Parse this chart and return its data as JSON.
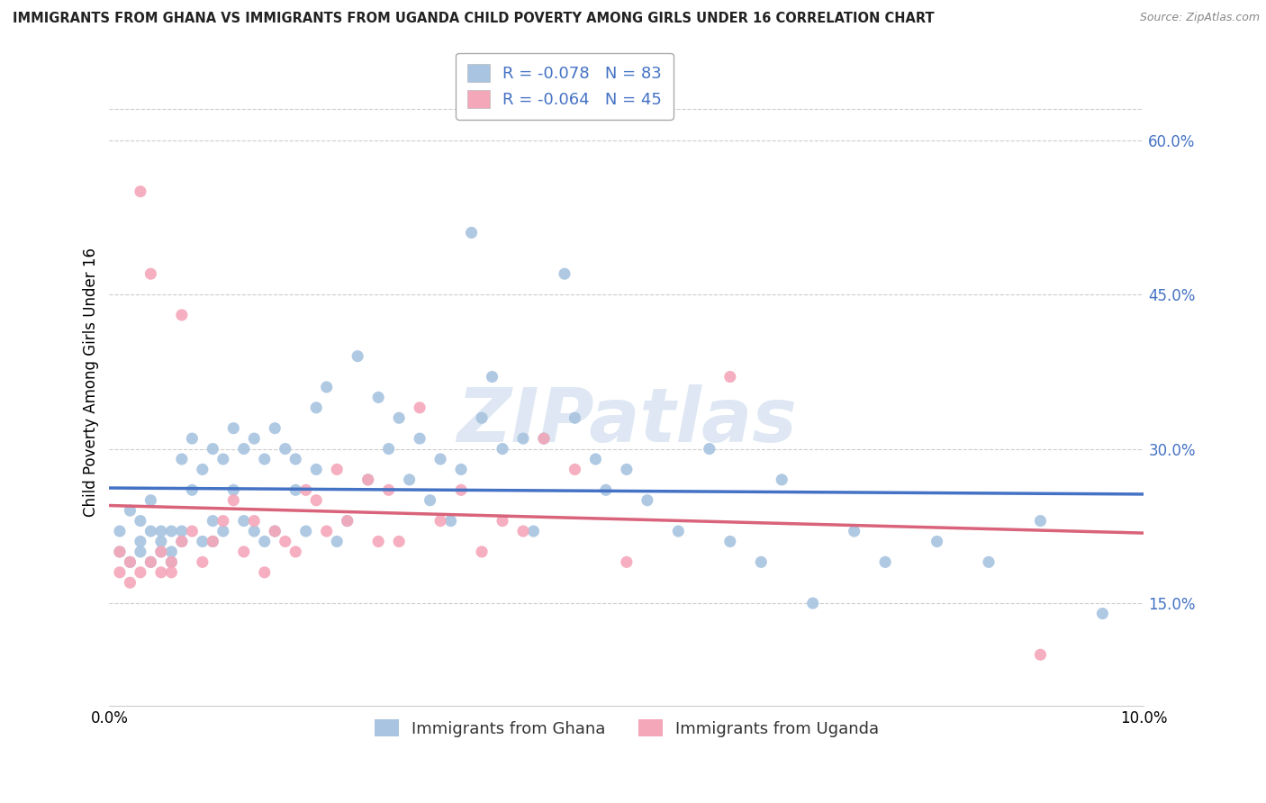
{
  "title": "IMMIGRANTS FROM GHANA VS IMMIGRANTS FROM UGANDA CHILD POVERTY AMONG GIRLS UNDER 16 CORRELATION CHART",
  "source": "Source: ZipAtlas.com",
  "ylabel": "Child Poverty Among Girls Under 16",
  "xlabel_legend1": "Immigrants from Ghana",
  "xlabel_legend2": "Immigrants from Uganda",
  "ghana_R": -0.078,
  "ghana_N": 83,
  "uganda_R": -0.064,
  "uganda_N": 45,
  "ghana_color": "#a8c4e0",
  "uganda_color": "#f4a7b9",
  "ghana_line_color": "#4472c4",
  "uganda_line_color": "#d9637a",
  "xlim": [
    0.0,
    0.1
  ],
  "ylim": [
    0.05,
    0.68
  ],
  "yticks": [
    0.15,
    0.3,
    0.45,
    0.6
  ],
  "ytick_labels": [
    "15.0%",
    "30.0%",
    "45.0%",
    "60.0%"
  ],
  "grid_color": "#cccccc",
  "background_color": "#ffffff",
  "watermark": "ZIPatlas",
  "watermark_color": "#c8d8ec",
  "legend_text_color": "#4472c4",
  "ghana_x": [
    0.001,
    0.001,
    0.002,
    0.002,
    0.003,
    0.003,
    0.003,
    0.004,
    0.004,
    0.004,
    0.005,
    0.005,
    0.005,
    0.006,
    0.006,
    0.006,
    0.007,
    0.007,
    0.007,
    0.008,
    0.008,
    0.009,
    0.009,
    0.01,
    0.01,
    0.01,
    0.011,
    0.011,
    0.012,
    0.012,
    0.013,
    0.013,
    0.014,
    0.014,
    0.015,
    0.015,
    0.016,
    0.016,
    0.017,
    0.018,
    0.018,
    0.019,
    0.02,
    0.02,
    0.021,
    0.022,
    0.023,
    0.024,
    0.025,
    0.026,
    0.027,
    0.028,
    0.029,
    0.03,
    0.031,
    0.032,
    0.033,
    0.034,
    0.035,
    0.036,
    0.037,
    0.038,
    0.04,
    0.041,
    0.042,
    0.044,
    0.045,
    0.047,
    0.048,
    0.05,
    0.052,
    0.055,
    0.058,
    0.06,
    0.063,
    0.065,
    0.068,
    0.072,
    0.075,
    0.08,
    0.085,
    0.09,
    0.096
  ],
  "ghana_y": [
    0.22,
    0.2,
    0.19,
    0.24,
    0.21,
    0.2,
    0.23,
    0.22,
    0.19,
    0.25,
    0.21,
    0.22,
    0.2,
    0.22,
    0.2,
    0.19,
    0.29,
    0.22,
    0.21,
    0.31,
    0.26,
    0.28,
    0.21,
    0.3,
    0.23,
    0.21,
    0.29,
    0.22,
    0.32,
    0.26,
    0.3,
    0.23,
    0.31,
    0.22,
    0.29,
    0.21,
    0.32,
    0.22,
    0.3,
    0.26,
    0.29,
    0.22,
    0.28,
    0.34,
    0.36,
    0.21,
    0.23,
    0.39,
    0.27,
    0.35,
    0.3,
    0.33,
    0.27,
    0.31,
    0.25,
    0.29,
    0.23,
    0.28,
    0.51,
    0.33,
    0.37,
    0.3,
    0.31,
    0.22,
    0.31,
    0.47,
    0.33,
    0.29,
    0.26,
    0.28,
    0.25,
    0.22,
    0.3,
    0.21,
    0.19,
    0.27,
    0.15,
    0.22,
    0.19,
    0.21,
    0.19,
    0.23,
    0.14
  ],
  "uganda_x": [
    0.001,
    0.001,
    0.002,
    0.002,
    0.003,
    0.003,
    0.004,
    0.004,
    0.005,
    0.005,
    0.006,
    0.006,
    0.007,
    0.007,
    0.008,
    0.009,
    0.01,
    0.011,
    0.012,
    0.013,
    0.014,
    0.015,
    0.016,
    0.017,
    0.018,
    0.019,
    0.02,
    0.021,
    0.022,
    0.023,
    0.025,
    0.026,
    0.027,
    0.028,
    0.03,
    0.032,
    0.034,
    0.036,
    0.038,
    0.04,
    0.042,
    0.045,
    0.05,
    0.06,
    0.09
  ],
  "uganda_y": [
    0.18,
    0.2,
    0.17,
    0.19,
    0.55,
    0.18,
    0.47,
    0.19,
    0.18,
    0.2,
    0.19,
    0.18,
    0.43,
    0.21,
    0.22,
    0.19,
    0.21,
    0.23,
    0.25,
    0.2,
    0.23,
    0.18,
    0.22,
    0.21,
    0.2,
    0.26,
    0.25,
    0.22,
    0.28,
    0.23,
    0.27,
    0.21,
    0.26,
    0.21,
    0.34,
    0.23,
    0.26,
    0.2,
    0.23,
    0.22,
    0.31,
    0.28,
    0.19,
    0.37,
    0.1
  ]
}
